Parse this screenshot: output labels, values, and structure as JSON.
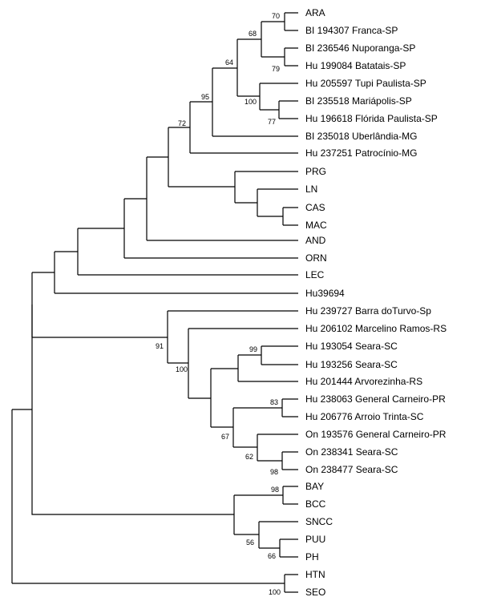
{
  "tree": {
    "leaves": [
      "ARA",
      "BI 194307 Franca-SP",
      "BI 236546 Nuporanga-SP",
      "Hu 199084 Batatais-SP",
      "Hu 205597 Tupi Paulista-SP",
      "BI 235518 Mariápolis-SP",
      "Hu 196618 Flórida Paulista-SP",
      "BI 235018 Uberlândia-MG",
      "Hu 237251 Patrocínio-MG",
      "PRG",
      "LN",
      "CAS",
      "MAC",
      "AND",
      "ORN",
      "LEC",
      "Hu39694",
      "Hu 239727 Barra doTurvo-Sp",
      "Hu 206102 Marcelino Ramos-RS",
      "Hu 193054 Seara-SC",
      "Hu 193256 Seara-SC",
      "Hu 201444 Arvorezinha-RS",
      "Hu 238063 General Carneiro-PR",
      "Hu 206776 Arroio Trinta-SC",
      "On 193576 General Carneiro-PR",
      "On 238341 Seara-SC",
      "On 238477 Seara-SC",
      "BAY",
      "BCC",
      "SNCC",
      "PUU",
      "PH",
      "HTN",
      "SEO"
    ],
    "bootstrap": [
      "70",
      "68",
      "79",
      "64",
      "100",
      "77",
      "95",
      "72",
      "91",
      "99",
      "100",
      "83",
      "67",
      "62",
      "98",
      "98",
      "56",
      "66",
      "100"
    ]
  }
}
